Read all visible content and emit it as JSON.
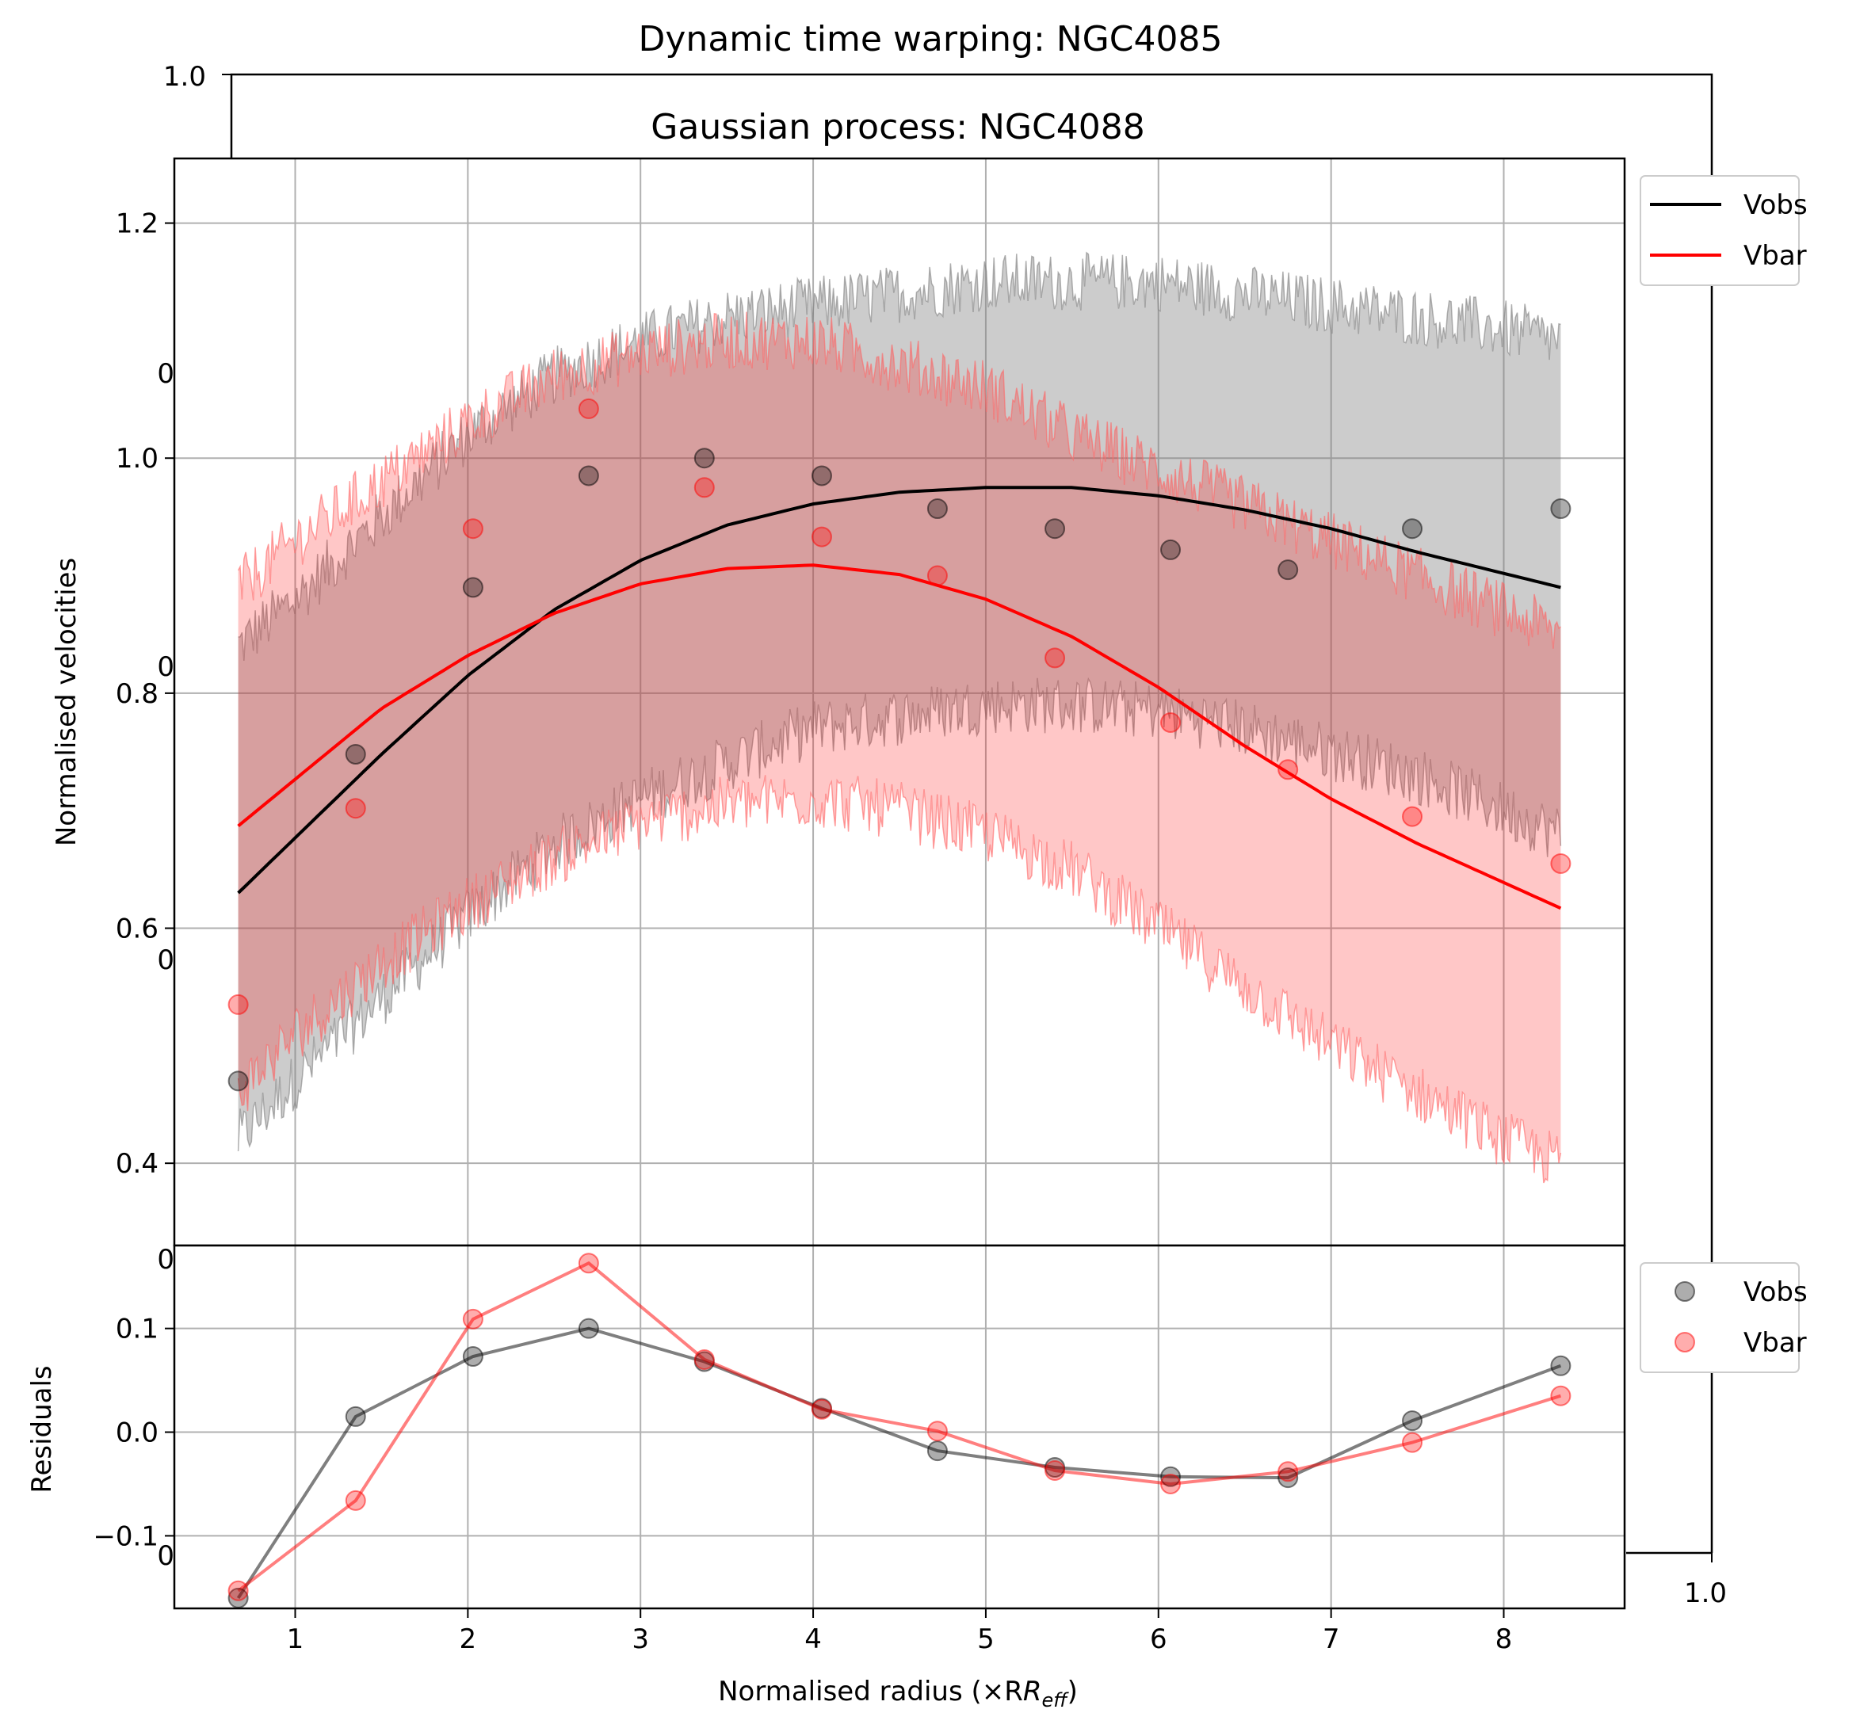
{
  "back_axes": {
    "title": "Dynamic time warping: NGC4085",
    "corner_labels": {
      "top_left": "1.0",
      "bottom_right": "1.0"
    },
    "clipped_left_labels": [
      "0",
      "0",
      "0",
      "0",
      "0"
    ]
  },
  "chart_data": [
    {
      "type": "line",
      "title": "Gaussian process: NGC4088",
      "xlabel": "",
      "ylabel": "Normalised velocities",
      "xlim": [
        0.3,
        8.7
      ],
      "ylim": [
        0.33,
        1.255
      ],
      "x_ticks": [
        1,
        2,
        3,
        4,
        5,
        6,
        7,
        8
      ],
      "y_ticks": [
        0.4,
        0.6,
        0.8,
        1.0,
        1.2
      ],
      "y_tick_labels": [
        "0.4",
        "0.6",
        "0.8",
        "1.0",
        "1.2"
      ],
      "grid": true,
      "legend": {
        "position": "upper-right-outside",
        "entries": [
          "Vobs",
          "Vbar"
        ]
      },
      "colors": {
        "Vobs": "#000000",
        "Vbar": "#ff0000"
      },
      "points": {
        "x": [
          0.67,
          1.35,
          2.03,
          2.7,
          3.37,
          4.05,
          4.72,
          5.4,
          6.07,
          6.75,
          7.47,
          8.33
        ],
        "Vobs": [
          0.47,
          0.748,
          0.89,
          0.985,
          1.0,
          0.985,
          0.957,
          0.94,
          0.922,
          0.905,
          0.94,
          0.957
        ],
        "Vbar": [
          0.535,
          0.702,
          0.94,
          1.042,
          0.975,
          0.933,
          0.9,
          0.83,
          0.775,
          0.735,
          0.695,
          0.655
        ]
      },
      "fit_curves": {
        "Vobs": {
          "x": [
            0.67,
            1.5,
            2.0,
            2.5,
            3.0,
            3.5,
            4.0,
            4.5,
            5.0,
            5.5,
            6.0,
            6.5,
            7.0,
            7.5,
            8.33
          ],
          "y": [
            0.63,
            0.748,
            0.815,
            0.871,
            0.913,
            0.943,
            0.961,
            0.971,
            0.975,
            0.975,
            0.968,
            0.956,
            0.94,
            0.92,
            0.89
          ]
        },
        "Vbar": {
          "x": [
            0.67,
            1.5,
            2.0,
            2.5,
            3.0,
            3.5,
            4.0,
            4.5,
            5.0,
            5.5,
            6.0,
            6.5,
            7.0,
            7.5,
            8.33
          ],
          "y": [
            0.687,
            0.787,
            0.832,
            0.868,
            0.893,
            0.906,
            0.909,
            0.901,
            0.88,
            0.848,
            0.805,
            0.755,
            0.71,
            0.672,
            0.617
          ]
        }
      },
      "bands": {
        "Vobs": {
          "x": [
            0.67,
            1.0,
            1.5,
            2.0,
            2.5,
            3.0,
            3.5,
            4.0,
            4.5,
            5.0,
            5.5,
            6.0,
            6.5,
            7.0,
            7.5,
            8.0,
            8.33
          ],
          "upper": [
            0.84,
            0.88,
            0.95,
            1.02,
            1.07,
            1.1,
            1.12,
            1.13,
            1.14,
            1.15,
            1.15,
            1.15,
            1.14,
            1.13,
            1.12,
            1.11,
            1.1
          ],
          "lower": [
            0.42,
            0.47,
            0.54,
            0.61,
            0.67,
            0.71,
            0.74,
            0.77,
            0.78,
            0.79,
            0.79,
            0.785,
            0.77,
            0.75,
            0.73,
            0.7,
            0.68
          ]
        },
        "Vbar": {
          "x": [
            0.67,
            1.0,
            1.5,
            2.0,
            2.5,
            3.0,
            3.5,
            4.0,
            4.5,
            5.0,
            5.5,
            6.0,
            6.5,
            7.0,
            7.5,
            8.0,
            8.33
          ],
          "upper": [
            0.89,
            0.93,
            0.98,
            1.03,
            1.07,
            1.09,
            1.1,
            1.1,
            1.08,
            1.06,
            1.02,
            0.99,
            0.96,
            0.93,
            0.9,
            0.87,
            0.85
          ],
          "lower": [
            0.46,
            0.51,
            0.57,
            0.62,
            0.66,
            0.69,
            0.705,
            0.71,
            0.7,
            0.68,
            0.65,
            0.6,
            0.55,
            0.5,
            0.46,
            0.42,
            0.4
          ]
        }
      }
    },
    {
      "type": "line",
      "title": "",
      "xlabel": "Normalised radius (×R",
      "xlabel_sub": "eff",
      "xlabel_end": ")",
      "ylabel": "Residuals",
      "xlim": [
        0.3,
        8.7
      ],
      "ylim": [
        -0.17,
        0.18
      ],
      "x_ticks": [
        1,
        2,
        3,
        4,
        5,
        6,
        7,
        8
      ],
      "x_tick_labels": [
        "1",
        "2",
        "3",
        "4",
        "5",
        "6",
        "7",
        "8"
      ],
      "y_ticks": [
        -0.1,
        0.0,
        0.1
      ],
      "y_tick_labels": [
        "−0.1",
        "0.0",
        "0.1"
      ],
      "grid": true,
      "legend": {
        "position": "upper-right-outside",
        "entries": [
          "Vobs",
          "Vbar"
        ]
      },
      "colors": {
        "Vobs": "#000000",
        "Vbar": "#ff0000"
      },
      "series": [
        {
          "name": "Vobs",
          "x": [
            0.67,
            1.35,
            2.03,
            2.7,
            3.37,
            4.05,
            4.72,
            5.4,
            6.07,
            6.75,
            7.47,
            8.33
          ],
          "values": [
            -0.16,
            0.015,
            0.073,
            0.1,
            0.068,
            0.023,
            -0.018,
            -0.034,
            -0.043,
            -0.044,
            0.011,
            0.064
          ]
        },
        {
          "name": "Vbar",
          "x": [
            0.67,
            1.35,
            2.03,
            2.7,
            3.37,
            4.05,
            4.72,
            5.4,
            6.07,
            6.75,
            7.47,
            8.33
          ],
          "values": [
            -0.153,
            -0.066,
            0.109,
            0.163,
            0.07,
            0.022,
            0.001,
            -0.037,
            -0.05,
            -0.038,
            -0.01,
            0.035
          ]
        }
      ]
    }
  ]
}
